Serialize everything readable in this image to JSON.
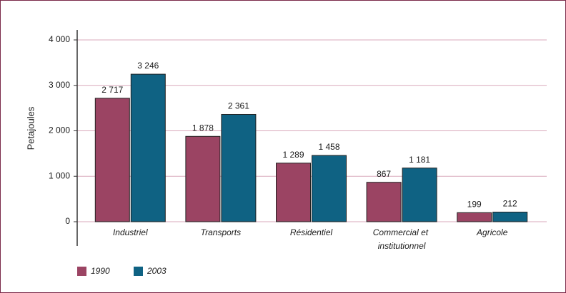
{
  "chart_data": {
    "type": "bar",
    "y_label": "Petajoules",
    "categories": [
      "Industriel",
      "Transports",
      "Résidentiel",
      "Commercial et institutionnel",
      "Agricole"
    ],
    "series": [
      {
        "name": "1990",
        "color": "#9b4463",
        "values": [
          2717,
          1878,
          1289,
          867,
          199
        ],
        "value_labels": [
          "2 717",
          "1 878",
          "1 289",
          "867",
          "199"
        ]
      },
      {
        "name": "2003",
        "color": "#0f6283",
        "values": [
          3246,
          2361,
          1458,
          1181,
          212
        ],
        "value_labels": [
          "3 246",
          "2 361",
          "1 458",
          "1 181",
          "212"
        ]
      }
    ],
    "ylim": [
      0,
      4000
    ],
    "yticks": [
      {
        "value": 0,
        "label": "0"
      },
      {
        "value": 1000,
        "label": "1 000"
      },
      {
        "value": 2000,
        "label": "2 000"
      },
      {
        "value": 3000,
        "label": "3 000"
      },
      {
        "value": 4000,
        "label": "4 000"
      }
    ],
    "grid": true
  }
}
